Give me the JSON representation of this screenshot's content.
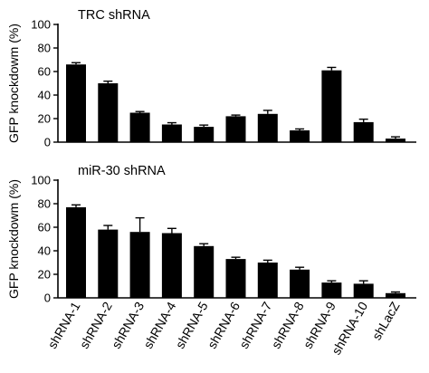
{
  "chart_data": [
    {
      "type": "bar",
      "title": "TRC shRNA",
      "ylabel": "GFP knockdowm (%)",
      "xlabel": "",
      "ylim": [
        0,
        100
      ],
      "yticks": [
        0,
        20,
        40,
        60,
        80,
        100
      ],
      "grid": false,
      "show_category_labels": false,
      "categories": [
        "shRNA-1",
        "shRNA-2",
        "shRNA-3",
        "shRNA-4",
        "shRNA-5",
        "shRNA-6",
        "shRNA-7",
        "shRNA-8",
        "shRNA-9",
        "shRNA-10",
        "shLacZ"
      ],
      "values": [
        66,
        50,
        25,
        15,
        13,
        22,
        24,
        10,
        61,
        17,
        3
      ],
      "errors": [
        1.5,
        1.8,
        1,
        1.5,
        1.5,
        1,
        3,
        1.2,
        2.5,
        2.5,
        1.5
      ]
    },
    {
      "type": "bar",
      "title": "miR-30 shRNA",
      "ylabel": "GFP knockdowm (%)",
      "xlabel": "",
      "ylim": [
        0,
        100
      ],
      "yticks": [
        0,
        20,
        40,
        60,
        80,
        100
      ],
      "grid": false,
      "show_category_labels": true,
      "categories": [
        "shRNA-1",
        "shRNA-2",
        "shRNA-3",
        "shRNA-4",
        "shRNA-5",
        "shRNA-6",
        "shRNA-7",
        "shRNA-8",
        "shRNA-9",
        "shRNA-10",
        "shLacZ"
      ],
      "values": [
        77,
        58,
        56,
        55,
        44,
        33,
        30,
        24,
        13,
        12,
        4
      ],
      "errors": [
        2,
        3.5,
        12,
        4,
        2,
        1.5,
        2,
        2,
        1.5,
        2.5,
        1
      ]
    }
  ]
}
